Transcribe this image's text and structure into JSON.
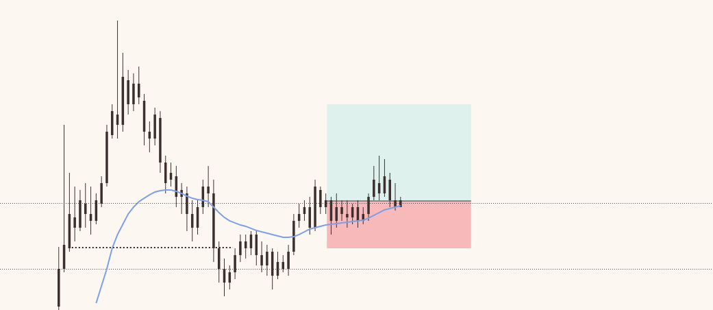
{
  "chart_data": {
    "type": "candlestick",
    "xlim": [
      -11,
      122.5
    ],
    "ylim": [
      0,
      452
    ],
    "background": "#fcf7f1",
    "candle_color": "#3b2f2f",
    "open": [
      5,
      60,
      90,
      135,
      120,
      155,
      140,
      130,
      155,
      185,
      255,
      285,
      270,
      335,
      300,
      330,
      305,
      260,
      250,
      280,
      215,
      190,
      195,
      165,
      170,
      140,
      120,
      150,
      180,
      170,
      90,
      60,
      40,
      55,
      80,
      100,
      90,
      110,
      80,
      65,
      85,
      50,
      70,
      60,
      85,
      130,
      140,
      150,
      120,
      175,
      150,
      160,
      130,
      150,
      140,
      135,
      150,
      130,
      140,
      165,
      185,
      170,
      190,
      160,
      150
    ],
    "high": [
      92,
      270,
      200,
      180,
      175,
      185,
      180,
      170,
      195,
      270,
      300,
      422,
      375,
      350,
      345,
      355,
      315,
      275,
      295,
      290,
      225,
      215,
      210,
      185,
      180,
      160,
      160,
      190,
      210,
      190,
      100,
      75,
      65,
      90,
      110,
      110,
      115,
      115,
      100,
      95,
      90,
      85,
      80,
      95,
      140,
      155,
      160,
      165,
      190,
      180,
      170,
      165,
      170,
      160,
      160,
      155,
      160,
      150,
      170,
      210,
      225,
      220,
      200,
      185,
      165
    ],
    "low": [
      0,
      55,
      85,
      100,
      115,
      120,
      110,
      125,
      150,
      180,
      250,
      250,
      260,
      285,
      290,
      300,
      240,
      230,
      240,
      200,
      170,
      180,
      150,
      140,
      115,
      100,
      110,
      140,
      150,
      70,
      40,
      20,
      30,
      45,
      70,
      75,
      80,
      65,
      55,
      50,
      30,
      45,
      55,
      50,
      80,
      120,
      130,
      110,
      115,
      140,
      140,
      110,
      120,
      130,
      120,
      125,
      120,
      125,
      130,
      160,
      160,
      165,
      150,
      145,
      150
    ],
    "close": [
      60,
      95,
      140,
      120,
      160,
      140,
      130,
      160,
      185,
      260,
      290,
      270,
      340,
      300,
      330,
      310,
      260,
      250,
      285,
      215,
      185,
      200,
      165,
      175,
      140,
      120,
      150,
      180,
      170,
      90,
      60,
      40,
      55,
      80,
      100,
      90,
      110,
      80,
      65,
      85,
      50,
      70,
      60,
      85,
      130,
      140,
      150,
      120,
      180,
      150,
      160,
      130,
      150,
      140,
      135,
      150,
      130,
      140,
      165,
      190,
      170,
      195,
      160,
      150,
      160
    ],
    "moving_average": {
      "color": "#7b9fe8",
      "values": [
        null,
        null,
        null,
        null,
        null,
        null,
        null,
        10,
        35,
        60,
        90,
        110,
        125,
        140,
        150,
        158,
        163,
        168,
        172,
        174,
        175,
        175,
        173,
        170,
        166,
        163,
        161,
        160,
        158,
        150,
        142,
        135,
        130,
        127,
        124,
        122,
        119,
        116,
        114,
        112,
        110,
        108,
        106,
        106,
        107,
        110,
        114,
        118,
        120,
        122,
        124,
        125,
        126,
        127,
        128,
        129,
        130,
        131,
        134,
        138,
        142,
        146,
        148,
        150,
        152
      ]
    },
    "hlines": [
      156,
      60
    ],
    "level_segment": {
      "value": 91,
      "x": [
        1.8,
        32.6
      ]
    },
    "position": {
      "x": [
        50.2,
        77.2
      ],
      "target": 300,
      "entry": 159,
      "stop": 90,
      "target_color": "#dff1ec",
      "stop_color": "#f7b9b9"
    }
  }
}
